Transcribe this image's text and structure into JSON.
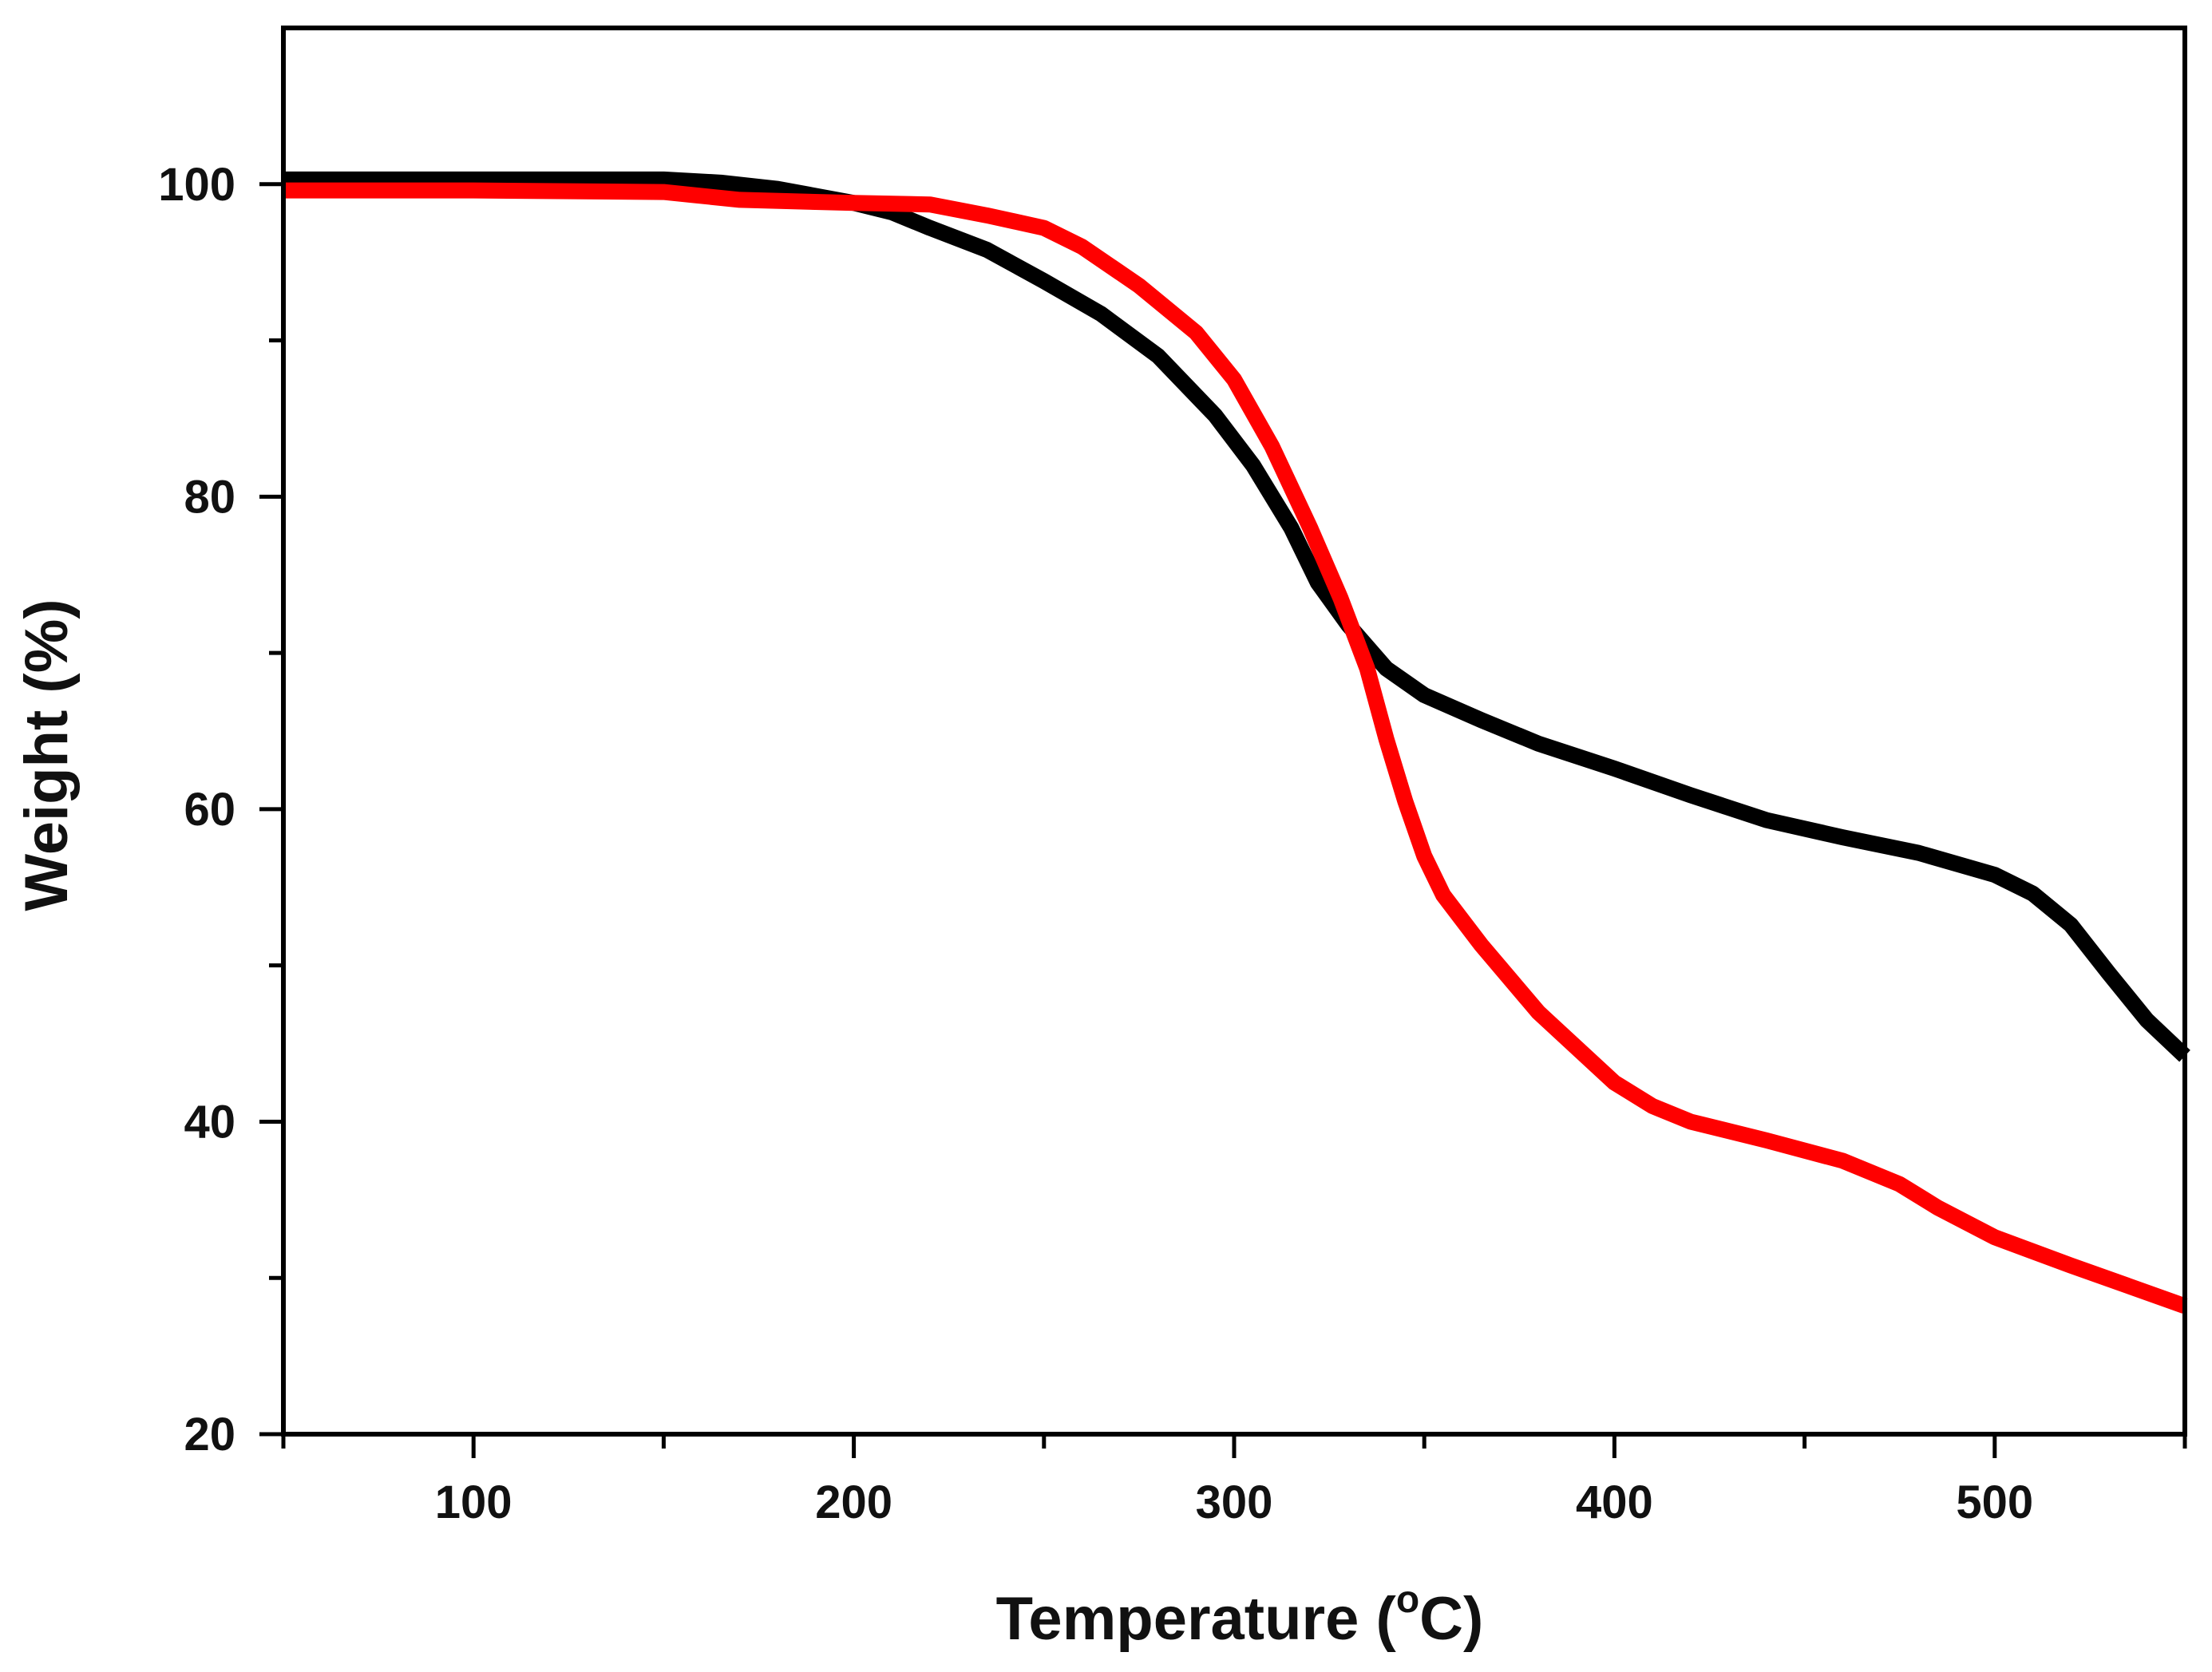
{
  "chart_data": {
    "type": "line",
    "title": "",
    "xlabel": "Temperature (°C)",
    "xlabel_main": "Temperature (",
    "xlabel_unit_sup": "o",
    "xlabel_unit": "C)",
    "ylabel": "Weight (%)",
    "xlim": [
      50,
      550
    ],
    "ylim": [
      20,
      110
    ],
    "grid": false,
    "legend": "none",
    "x_major_ticks": [
      100,
      200,
      300,
      400,
      500
    ],
    "x_minor_ticks": [
      50,
      150,
      250,
      350,
      450,
      550
    ],
    "y_major_ticks": [
      20,
      40,
      60,
      80,
      100
    ],
    "y_minor_ticks": [
      30,
      50,
      70,
      90
    ],
    "x_tick_labels": [
      "100",
      "200",
      "300",
      "400",
      "500"
    ],
    "y_tick_labels": [
      "20",
      "40",
      "60",
      "80",
      "100"
    ],
    "series": [
      {
        "name": "black-curve",
        "color": "#000000",
        "x": [
          50,
          100,
          150,
          165,
          180,
          200,
          210,
          220,
          235,
          250,
          265,
          280,
          295,
          305,
          315,
          322,
          330,
          340,
          350,
          365,
          380,
          400,
          420,
          440,
          460,
          480,
          500,
          510,
          520,
          530,
          540,
          550
        ],
        "y": [
          100.3,
          100.3,
          100.3,
          100.1,
          99.7,
          98.8,
          98.2,
          97.2,
          95.8,
          93.8,
          91.7,
          89.0,
          85.2,
          82.0,
          78.0,
          74.5,
          71.8,
          69.0,
          67.3,
          65.7,
          64.2,
          62.6,
          60.9,
          59.3,
          58.2,
          57.2,
          55.8,
          54.6,
          52.6,
          49.5,
          46.5,
          44.2
        ]
      },
      {
        "name": "red-curve",
        "color": "#ff0000",
        "x": [
          50,
          100,
          150,
          170,
          200,
          220,
          235,
          250,
          260,
          275,
          290,
          300,
          310,
          320,
          328,
          335,
          340,
          345,
          350,
          355,
          365,
          380,
          400,
          410,
          420,
          440,
          460,
          475,
          485,
          500,
          520,
          535,
          550
        ],
        "y": [
          99.6,
          99.6,
          99.5,
          99.0,
          98.8,
          98.7,
          98.0,
          97.2,
          96.0,
          93.5,
          90.5,
          87.5,
          83.2,
          78.0,
          73.5,
          69.0,
          64.5,
          60.5,
          57.0,
          54.5,
          51.3,
          47.0,
          42.5,
          41.0,
          40.0,
          38.8,
          37.5,
          36.0,
          34.5,
          32.6,
          30.8,
          29.5,
          28.2
        ]
      }
    ]
  }
}
